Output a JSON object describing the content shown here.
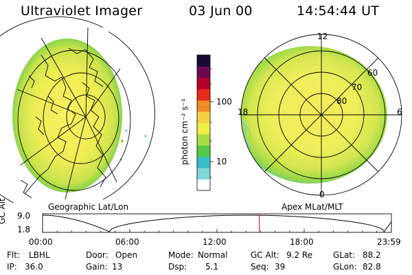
{
  "header": {
    "instrument": "Ultraviolet Imager",
    "date": "03 Jun 00",
    "time": "14:54:44 UT"
  },
  "colors": {
    "yellow": "#f4ee5a",
    "yellow_green": "#c8e34a",
    "green": "#7fd13c",
    "cyan": "#40c8c8",
    "red_marker": "#dd2222"
  },
  "left_map": {
    "label": "Geographic Lat/Lon",
    "icon": "earth-globe-icon"
  },
  "right_map": {
    "label": "Apex MLat/MLT",
    "mlt_labels": {
      "top": "12",
      "bottom": "0",
      "left": "18",
      "right": "6"
    },
    "mlat_labels": [
      "60",
      "70",
      "80"
    ]
  },
  "colorbar": {
    "unit": "photon cm⁻² s⁻¹",
    "ticks": [
      "100",
      "10"
    ],
    "scale": "log",
    "colors": [
      "#ffffff",
      "#7fd6d6",
      "#36c0c8",
      "#56c848",
      "#a8dc44",
      "#eeee44",
      "#f4d044",
      "#f08c22",
      "#e62a1e",
      "#b4002a",
      "#6a0a52",
      "#1a0a3a"
    ]
  },
  "altitude_plot": {
    "ylabel": "GC Alt",
    "y_ticks": [
      "9.0",
      "1.8"
    ],
    "x_ticks": [
      "00:00",
      "06:00",
      "12:00",
      "18:00",
      "23:59"
    ],
    "marker_hour": 14.91
  },
  "info": {
    "filter": {
      "label": "Flt:",
      "value": "LBHL"
    },
    "ip": {
      "label": "IP:",
      "value": "36.0"
    },
    "door": {
      "label": "Door:",
      "value": "Open"
    },
    "gain": {
      "label": "Gain:",
      "value": "13"
    },
    "mode": {
      "label": "Mode:",
      "value": "Normal"
    },
    "dsp": {
      "label": "Dsp:",
      "value": "5.1"
    },
    "gc_alt": {
      "label": "GC Alt:",
      "value": "9.2 Re"
    },
    "seq": {
      "label": "Seq:",
      "value": "39"
    },
    "glat": {
      "label": "GLat:",
      "value": "88.2"
    },
    "glon": {
      "label": "GLon:",
      "value": "82.8"
    }
  }
}
